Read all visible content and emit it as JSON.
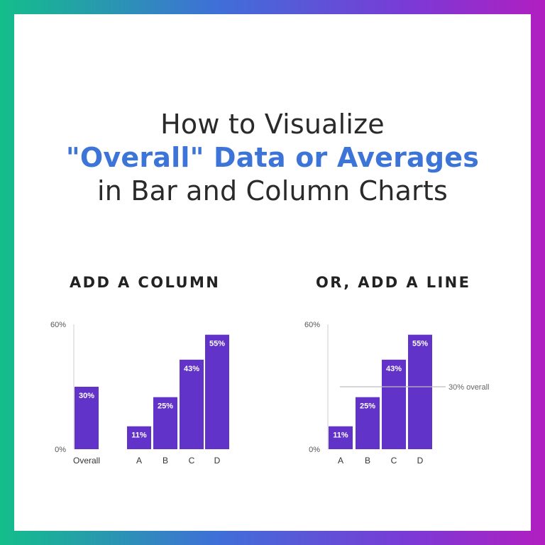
{
  "title": {
    "line1": "How to Visualize",
    "line2": "\"Overall\" Data or Averages",
    "line3": "in Bar and Column Charts"
  },
  "colors": {
    "bar": "#6233c8",
    "title_highlight": "#3d74d8",
    "reference_line": "#bdbdbd"
  },
  "chart_data": [
    {
      "type": "bar",
      "title": "ADD A COLUMN",
      "categories": [
        "Overall",
        "A",
        "B",
        "C",
        "D"
      ],
      "values": [
        30,
        11,
        25,
        43,
        55
      ],
      "value_labels": [
        "30%",
        "11%",
        "25%",
        "43%",
        "55%"
      ],
      "ylim": [
        0,
        60
      ],
      "y_ticks": [
        "0%",
        "60%"
      ],
      "grid": false
    },
    {
      "type": "bar",
      "title": "OR, ADD A LINE",
      "categories": [
        "A",
        "B",
        "C",
        "D"
      ],
      "values": [
        11,
        25,
        43,
        55
      ],
      "value_labels": [
        "11%",
        "25%",
        "43%",
        "55%"
      ],
      "ylim": [
        0,
        60
      ],
      "y_ticks": [
        "0%",
        "60%"
      ],
      "reference_line": {
        "value": 30,
        "label": "30% overall"
      },
      "grid": false
    }
  ]
}
